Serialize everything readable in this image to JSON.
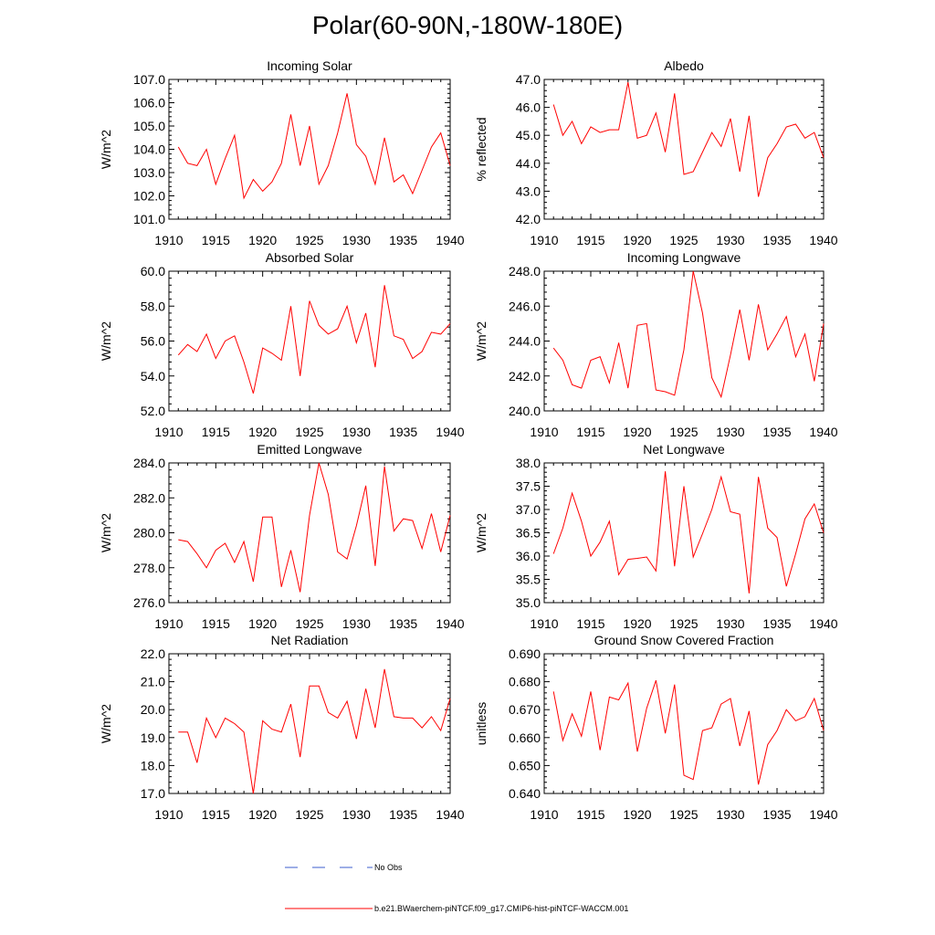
{
  "title": "Polar(60-90N,-180W-180E)",
  "legend": {
    "entries": [
      {
        "label": "No Obs",
        "color": "#3b5ccc",
        "style": "dashed"
      },
      {
        "label": "b.e21.BWaerchem-piNTCF.f09_g17.CMIP6-hist-piNTCF-WACCM.001",
        "color": "#ff0000",
        "style": "solid"
      }
    ]
  },
  "chart_data": [
    {
      "type": "line",
      "title": "Incoming Solar",
      "ylabel": "W/m^2",
      "ylim": [
        101.0,
        107.0
      ],
      "yticks": [
        "101.0",
        "102.0",
        "103.0",
        "104.0",
        "105.0",
        "106.0",
        "107.0"
      ],
      "xlim": [
        1910,
        1940
      ],
      "xticks": [
        "1910",
        "1915",
        "1920",
        "1925",
        "1930",
        "1935",
        "1940"
      ],
      "x": [
        1911,
        1912,
        1913,
        1914,
        1915,
        1916,
        1917,
        1918,
        1919,
        1920,
        1921,
        1922,
        1923,
        1924,
        1925,
        1926,
        1927,
        1928,
        1929,
        1930,
        1931,
        1932,
        1933,
        1934,
        1935,
        1936,
        1937,
        1938,
        1939,
        1940
      ],
      "series": [
        {
          "color": "#ff0000",
          "values": [
            104.1,
            103.4,
            103.3,
            104.0,
            102.5,
            103.6,
            104.6,
            101.9,
            102.7,
            102.2,
            102.6,
            103.4,
            105.5,
            103.3,
            105.0,
            102.5,
            103.3,
            104.7,
            106.4,
            104.2,
            103.7,
            102.5,
            104.5,
            102.6,
            102.9,
            102.1,
            103.1,
            104.1,
            104.7,
            103.3
          ]
        }
      ]
    },
    {
      "type": "line",
      "title": "Albedo",
      "ylabel": "% reflected",
      "ylim": [
        42.0,
        47.0
      ],
      "yticks": [
        "42.0",
        "43.0",
        "44.0",
        "45.0",
        "46.0",
        "47.0"
      ],
      "xlim": [
        1910,
        1940
      ],
      "xticks": [
        "1910",
        "1915",
        "1920",
        "1925",
        "1930",
        "1935",
        "1940"
      ],
      "x": [
        1911,
        1912,
        1913,
        1914,
        1915,
        1916,
        1917,
        1918,
        1919,
        1920,
        1921,
        1922,
        1923,
        1924,
        1925,
        1926,
        1927,
        1928,
        1929,
        1930,
        1931,
        1932,
        1933,
        1934,
        1935,
        1936,
        1937,
        1938,
        1939,
        1940
      ],
      "series": [
        {
          "color": "#ff0000",
          "values": [
            46.1,
            45.0,
            45.5,
            44.7,
            45.3,
            45.1,
            45.2,
            45.2,
            46.9,
            44.9,
            45.0,
            45.8,
            44.4,
            46.5,
            43.6,
            43.7,
            44.4,
            45.1,
            44.6,
            45.6,
            43.7,
            45.7,
            42.8,
            44.2,
            44.7,
            45.3,
            45.4,
            44.9,
            45.1,
            44.2
          ]
        }
      ]
    },
    {
      "type": "line",
      "title": "Absorbed Solar",
      "ylabel": "W/m^2",
      "ylim": [
        52.0,
        60.0
      ],
      "yticks": [
        "52.0",
        "54.0",
        "56.0",
        "58.0",
        "60.0"
      ],
      "xlim": [
        1910,
        1940
      ],
      "xticks": [
        "1910",
        "1915",
        "1920",
        "1925",
        "1930",
        "1935",
        "1940"
      ],
      "x": [
        1911,
        1912,
        1913,
        1914,
        1915,
        1916,
        1917,
        1918,
        1919,
        1920,
        1921,
        1922,
        1923,
        1924,
        1925,
        1926,
        1927,
        1928,
        1929,
        1930,
        1931,
        1932,
        1933,
        1934,
        1935,
        1936,
        1937,
        1938,
        1939,
        1940
      ],
      "series": [
        {
          "color": "#ff0000",
          "values": [
            55.2,
            55.8,
            55.4,
            56.4,
            55.0,
            56.0,
            56.3,
            54.8,
            53.0,
            55.6,
            55.3,
            54.9,
            58.0,
            54.0,
            58.3,
            56.9,
            56.4,
            56.7,
            58.0,
            55.9,
            57.6,
            54.5,
            59.2,
            56.3,
            56.1,
            55.0,
            55.4,
            56.5,
            56.4,
            57.0
          ]
        }
      ]
    },
    {
      "type": "line",
      "title": "Incoming Longwave",
      "ylabel": "W/m^2",
      "ylim": [
        240.0,
        248.0
      ],
      "yticks": [
        "240.0",
        "242.0",
        "244.0",
        "246.0",
        "248.0"
      ],
      "xlim": [
        1910,
        1940
      ],
      "xticks": [
        "1910",
        "1915",
        "1920",
        "1925",
        "1930",
        "1935",
        "1940"
      ],
      "x": [
        1911,
        1912,
        1913,
        1914,
        1915,
        1916,
        1917,
        1918,
        1919,
        1920,
        1921,
        1922,
        1923,
        1924,
        1925,
        1926,
        1927,
        1928,
        1929,
        1930,
        1931,
        1932,
        1933,
        1934,
        1935,
        1936,
        1937,
        1938,
        1939,
        1940
      ],
      "series": [
        {
          "color": "#ff0000",
          "values": [
            243.6,
            242.9,
            241.5,
            241.3,
            242.9,
            243.1,
            241.6,
            243.9,
            241.3,
            244.9,
            245.0,
            241.2,
            241.1,
            240.9,
            243.5,
            248.0,
            245.6,
            241.9,
            240.8,
            243.2,
            245.8,
            242.9,
            246.1,
            243.5,
            244.4,
            245.4,
            243.1,
            244.4,
            241.7,
            245.0
          ]
        }
      ]
    },
    {
      "type": "line",
      "title": "Emitted Longwave",
      "ylabel": "W/m^2",
      "ylim": [
        276.0,
        284.0
      ],
      "yticks": [
        "276.0",
        "278.0",
        "280.0",
        "282.0",
        "284.0"
      ],
      "xlim": [
        1910,
        1940
      ],
      "xticks": [
        "1910",
        "1915",
        "1920",
        "1925",
        "1930",
        "1935",
        "1940"
      ],
      "x": [
        1911,
        1912,
        1913,
        1914,
        1915,
        1916,
        1917,
        1918,
        1919,
        1920,
        1921,
        1922,
        1923,
        1924,
        1925,
        1926,
        1927,
        1928,
        1929,
        1930,
        1931,
        1932,
        1933,
        1934,
        1935,
        1936,
        1937,
        1938,
        1939,
        1940
      ],
      "series": [
        {
          "color": "#ff0000",
          "values": [
            279.6,
            279.5,
            278.8,
            278.0,
            279.0,
            279.4,
            278.3,
            279.5,
            277.2,
            280.9,
            280.9,
            276.9,
            279.0,
            276.6,
            281.0,
            284.0,
            282.2,
            278.9,
            278.5,
            280.4,
            282.7,
            278.1,
            283.8,
            280.1,
            280.8,
            280.7,
            279.1,
            281.1,
            278.9,
            281.0
          ]
        }
      ]
    },
    {
      "type": "line",
      "title": "Net Longwave",
      "ylabel": "W/m^2",
      "ylim": [
        35.0,
        38.0
      ],
      "yticks": [
        "35.0",
        "35.5",
        "36.0",
        "36.5",
        "37.0",
        "37.5",
        "38.0"
      ],
      "xlim": [
        1910,
        1940
      ],
      "xticks": [
        "1910",
        "1915",
        "1920",
        "1925",
        "1930",
        "1935",
        "1940"
      ],
      "x": [
        1911,
        1912,
        1913,
        1914,
        1915,
        1916,
        1917,
        1918,
        1919,
        1920,
        1921,
        1922,
        1923,
        1924,
        1925,
        1926,
        1927,
        1928,
        1929,
        1930,
        1931,
        1932,
        1933,
        1934,
        1935,
        1936,
        1937,
        1938,
        1939,
        1940
      ],
      "series": [
        {
          "color": "#ff0000",
          "values": [
            36.05,
            36.6,
            37.35,
            36.75,
            36.0,
            36.3,
            36.75,
            35.6,
            35.93,
            35.95,
            35.98,
            35.68,
            37.82,
            35.78,
            37.5,
            35.98,
            36.48,
            37.0,
            37.7,
            36.95,
            36.9,
            35.2,
            37.7,
            36.6,
            36.4,
            35.35,
            36.05,
            36.8,
            37.12,
            36.5
          ]
        }
      ]
    },
    {
      "type": "line",
      "title": "Net Radiation",
      "ylabel": "W/m^2",
      "ylim": [
        17.0,
        22.0
      ],
      "yticks": [
        "17.0",
        "18.0",
        "19.0",
        "20.0",
        "21.0",
        "22.0"
      ],
      "xlim": [
        1910,
        1940
      ],
      "xticks": [
        "1910",
        "1915",
        "1920",
        "1925",
        "1930",
        "1935",
        "1940"
      ],
      "x": [
        1911,
        1912,
        1913,
        1914,
        1915,
        1916,
        1917,
        1918,
        1919,
        1920,
        1921,
        1922,
        1923,
        1924,
        1925,
        1926,
        1927,
        1928,
        1929,
        1930,
        1931,
        1932,
        1933,
        1934,
        1935,
        1936,
        1937,
        1938,
        1939,
        1940
      ],
      "series": [
        {
          "color": "#ff0000",
          "values": [
            19.2,
            19.2,
            18.1,
            19.7,
            19.0,
            19.7,
            19.5,
            19.2,
            17.0,
            19.6,
            19.3,
            19.2,
            20.2,
            18.3,
            20.85,
            20.85,
            19.9,
            19.7,
            20.3,
            18.95,
            20.75,
            19.35,
            21.45,
            19.75,
            19.7,
            19.7,
            19.35,
            19.75,
            19.25,
            20.4
          ]
        }
      ]
    },
    {
      "type": "line",
      "title": "Ground Snow Covered Fraction",
      "ylabel": "unitless",
      "ylim": [
        0.64,
        0.69
      ],
      "yticks": [
        "0.640",
        "0.650",
        "0.660",
        "0.670",
        "0.680",
        "0.690"
      ],
      "xlim": [
        1910,
        1940
      ],
      "xticks": [
        "1910",
        "1915",
        "1920",
        "1925",
        "1930",
        "1935",
        "1940"
      ],
      "x": [
        1911,
        1912,
        1913,
        1914,
        1915,
        1916,
        1917,
        1918,
        1919,
        1920,
        1921,
        1922,
        1923,
        1924,
        1925,
        1926,
        1927,
        1928,
        1929,
        1930,
        1931,
        1932,
        1933,
        1934,
        1935,
        1936,
        1937,
        1938,
        1939,
        1940
      ],
      "series": [
        {
          "color": "#ff0000",
          "values": [
            0.6765,
            0.659,
            0.6685,
            0.6605,
            0.6765,
            0.6555,
            0.6745,
            0.6735,
            0.6795,
            0.655,
            0.6705,
            0.6805,
            0.6615,
            0.679,
            0.6465,
            0.645,
            0.6625,
            0.6635,
            0.672,
            0.674,
            0.657,
            0.6695,
            0.6432,
            0.6575,
            0.6625,
            0.67,
            0.666,
            0.6675,
            0.674,
            0.6625
          ]
        }
      ]
    }
  ]
}
